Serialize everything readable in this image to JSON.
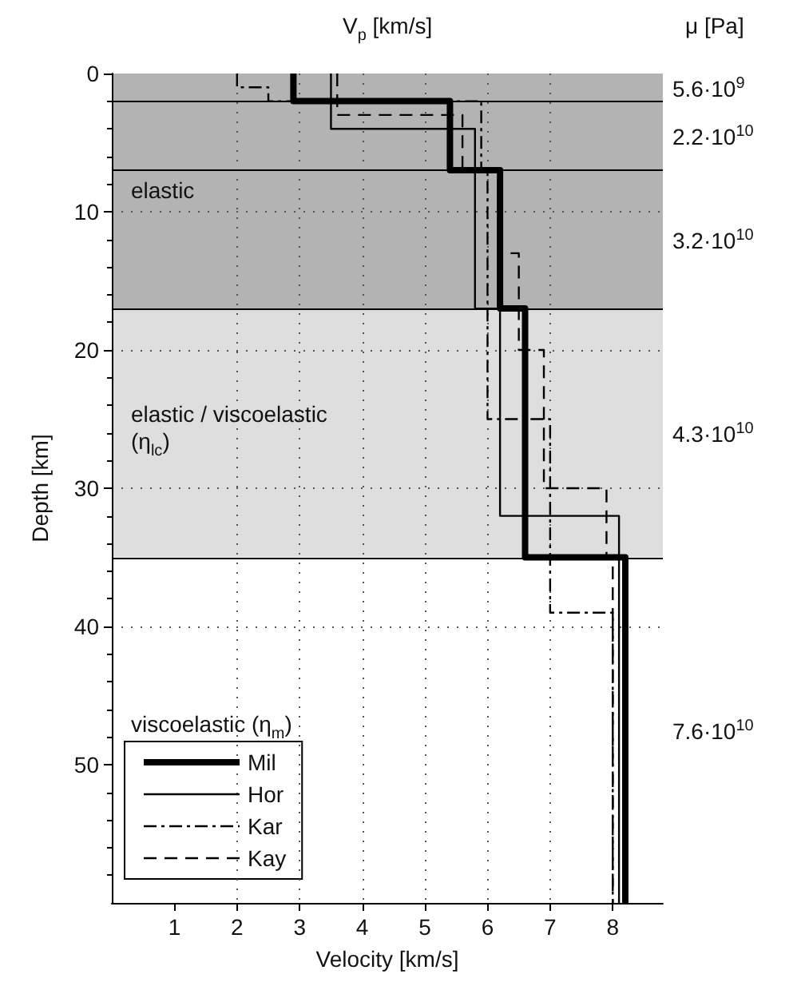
{
  "chart_data": {
    "type": "line",
    "xlabel": "Velocity [km/s]",
    "ylabel": "Depth [km]",
    "x2label": "V$_{p}$ [km/s]",
    "xlim": [
      0,
      8.8
    ],
    "xticks": [
      1,
      2,
      3,
      4,
      5,
      6,
      7,
      8
    ],
    "ylim": [
      60,
      0
    ],
    "yticks": [
      0,
      10,
      20,
      30,
      40,
      50
    ],
    "grid": true,
    "legend": "bottom left",
    "series": [
      {
        "name": "Mil",
        "color": "#000000",
        "line_style": "solid",
        "x": [
          2.9,
          2.9,
          5.4,
          5.4,
          6.2,
          6.2,
          6.6,
          6.6,
          8.2,
          8.2
        ],
        "values": [
          0,
          2,
          2,
          7,
          7,
          17,
          17,
          35,
          35,
          60
        ]
      },
      {
        "name": "Hor",
        "color": "#000000",
        "line_style": "solid",
        "x": [
          3.5,
          3.5,
          5.8,
          5.8,
          6.2,
          6.2,
          8.1,
          8.1
        ],
        "values": [
          0,
          4,
          4,
          17,
          17,
          32,
          32,
          60
        ]
      },
      {
        "name": "Kar",
        "color": "#000000",
        "line_style": "dashdot",
        "x": [
          2.0,
          2.0,
          2.5,
          2.5,
          5.9,
          5.9,
          6.0,
          6.0,
          7.0,
          7.0,
          8.0,
          8.0
        ],
        "values": [
          0,
          1,
          1,
          2,
          2,
          7,
          7,
          25,
          25,
          39,
          39,
          60
        ]
      },
      {
        "name": "Kay",
        "color": "#000000",
        "line_style": "dashed",
        "x": [
          3.6,
          3.6,
          5.6,
          5.6,
          6.2,
          6.2,
          6.5,
          6.5,
          6.9,
          6.9,
          7.9,
          7.9,
          8.0,
          8.0
        ],
        "values": [
          0,
          3,
          3,
          7,
          7,
          13,
          13,
          20,
          20,
          30,
          30,
          35,
          35,
          60
        ]
      }
    ],
    "bands": [
      {
        "axis": "y",
        "from": 0,
        "to": 17,
        "label": "elastic",
        "color": "#b3b3b3"
      },
      {
        "axis": "y",
        "from": 17,
        "to": 35,
        "label": "elastic / viscoelastic (η$_{lc}$)",
        "color": "#dedede"
      },
      {
        "axis": "y",
        "from": 35,
        "to": 60,
        "label": "viscoelastic (η$_{m}$)",
        "color": "#ffffff"
      }
    ],
    "ref_lines": [
      {
        "axis": "y",
        "value": 2
      },
      {
        "axis": "y",
        "value": 7
      },
      {
        "axis": "y",
        "value": 17
      },
      {
        "axis": "y",
        "value": 35
      }
    ],
    "annotations": [
      "μ [Pa]",
      "5.6·10$^{9}$",
      "2.2·10$^{10}$",
      "3.2·10$^{10}$",
      "4.3·10$^{10}$",
      "7.6·10$^{10}$"
    ]
  }
}
